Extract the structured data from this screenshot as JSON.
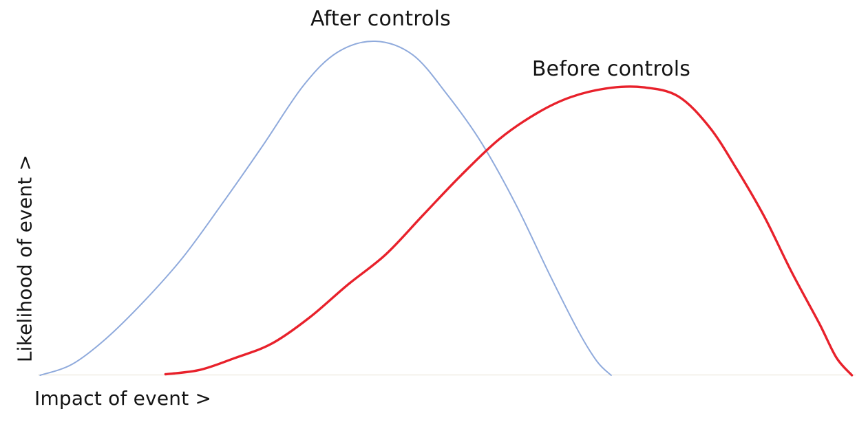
{
  "page": {
    "background_color": "#ffffff",
    "text_color": "#141414"
  },
  "chart_data": {
    "type": "line",
    "variant": "conceptual-risk-distribution-curves",
    "title": "",
    "xlabel": "Impact of event >",
    "ylabel": "Likelihood of event >",
    "grid": false,
    "x_axis": {
      "numeric": false,
      "ticks": [],
      "range": [
        0,
        100
      ]
    },
    "y_axis": {
      "numeric": false,
      "ticks": [],
      "range": [
        0,
        100
      ]
    },
    "axis_baseline_color": "#f0ece3",
    "legend_position": "inline-labels-above-peaks",
    "series": [
      {
        "name": "After controls",
        "color": "#8faadc",
        "stroke_width": 2,
        "points": [
          [
            0.7,
            0.0
          ],
          [
            4.6,
            3.3
          ],
          [
            8.8,
            11.1
          ],
          [
            13.4,
            22.2
          ],
          [
            18.1,
            35.2
          ],
          [
            22.7,
            50.6
          ],
          [
            27.7,
            68.1
          ],
          [
            32.8,
            86.6
          ],
          [
            37.0,
            96.7
          ],
          [
            41.6,
            100.0
          ],
          [
            46.2,
            95.9
          ],
          [
            50.4,
            84.0
          ],
          [
            54.6,
            69.5
          ],
          [
            58.8,
            51.0
          ],
          [
            63.0,
            29.6
          ],
          [
            66.4,
            13.2
          ],
          [
            68.7,
            4.1
          ],
          [
            70.4,
            0.0
          ]
        ]
      },
      {
        "name": "Before controls",
        "color": "#e8212b",
        "stroke_width": 3.4,
        "points": [
          [
            16.0,
            0.3
          ],
          [
            20.2,
            1.6
          ],
          [
            24.4,
            5.1
          ],
          [
            29.0,
            9.5
          ],
          [
            33.6,
            17.3
          ],
          [
            38.2,
            27.0
          ],
          [
            42.9,
            36.2
          ],
          [
            47.5,
            48.1
          ],
          [
            52.1,
            59.9
          ],
          [
            56.7,
            70.6
          ],
          [
            61.3,
            78.4
          ],
          [
            65.5,
            83.3
          ],
          [
            70.2,
            86.0
          ],
          [
            74.4,
            86.2
          ],
          [
            78.6,
            83.5
          ],
          [
            82.4,
            74.3
          ],
          [
            85.7,
            61.9
          ],
          [
            89.1,
            47.5
          ],
          [
            92.4,
            31.1
          ],
          [
            95.8,
            15.6
          ],
          [
            97.9,
            5.3
          ],
          [
            99.8,
            0.0
          ]
        ]
      }
    ]
  }
}
